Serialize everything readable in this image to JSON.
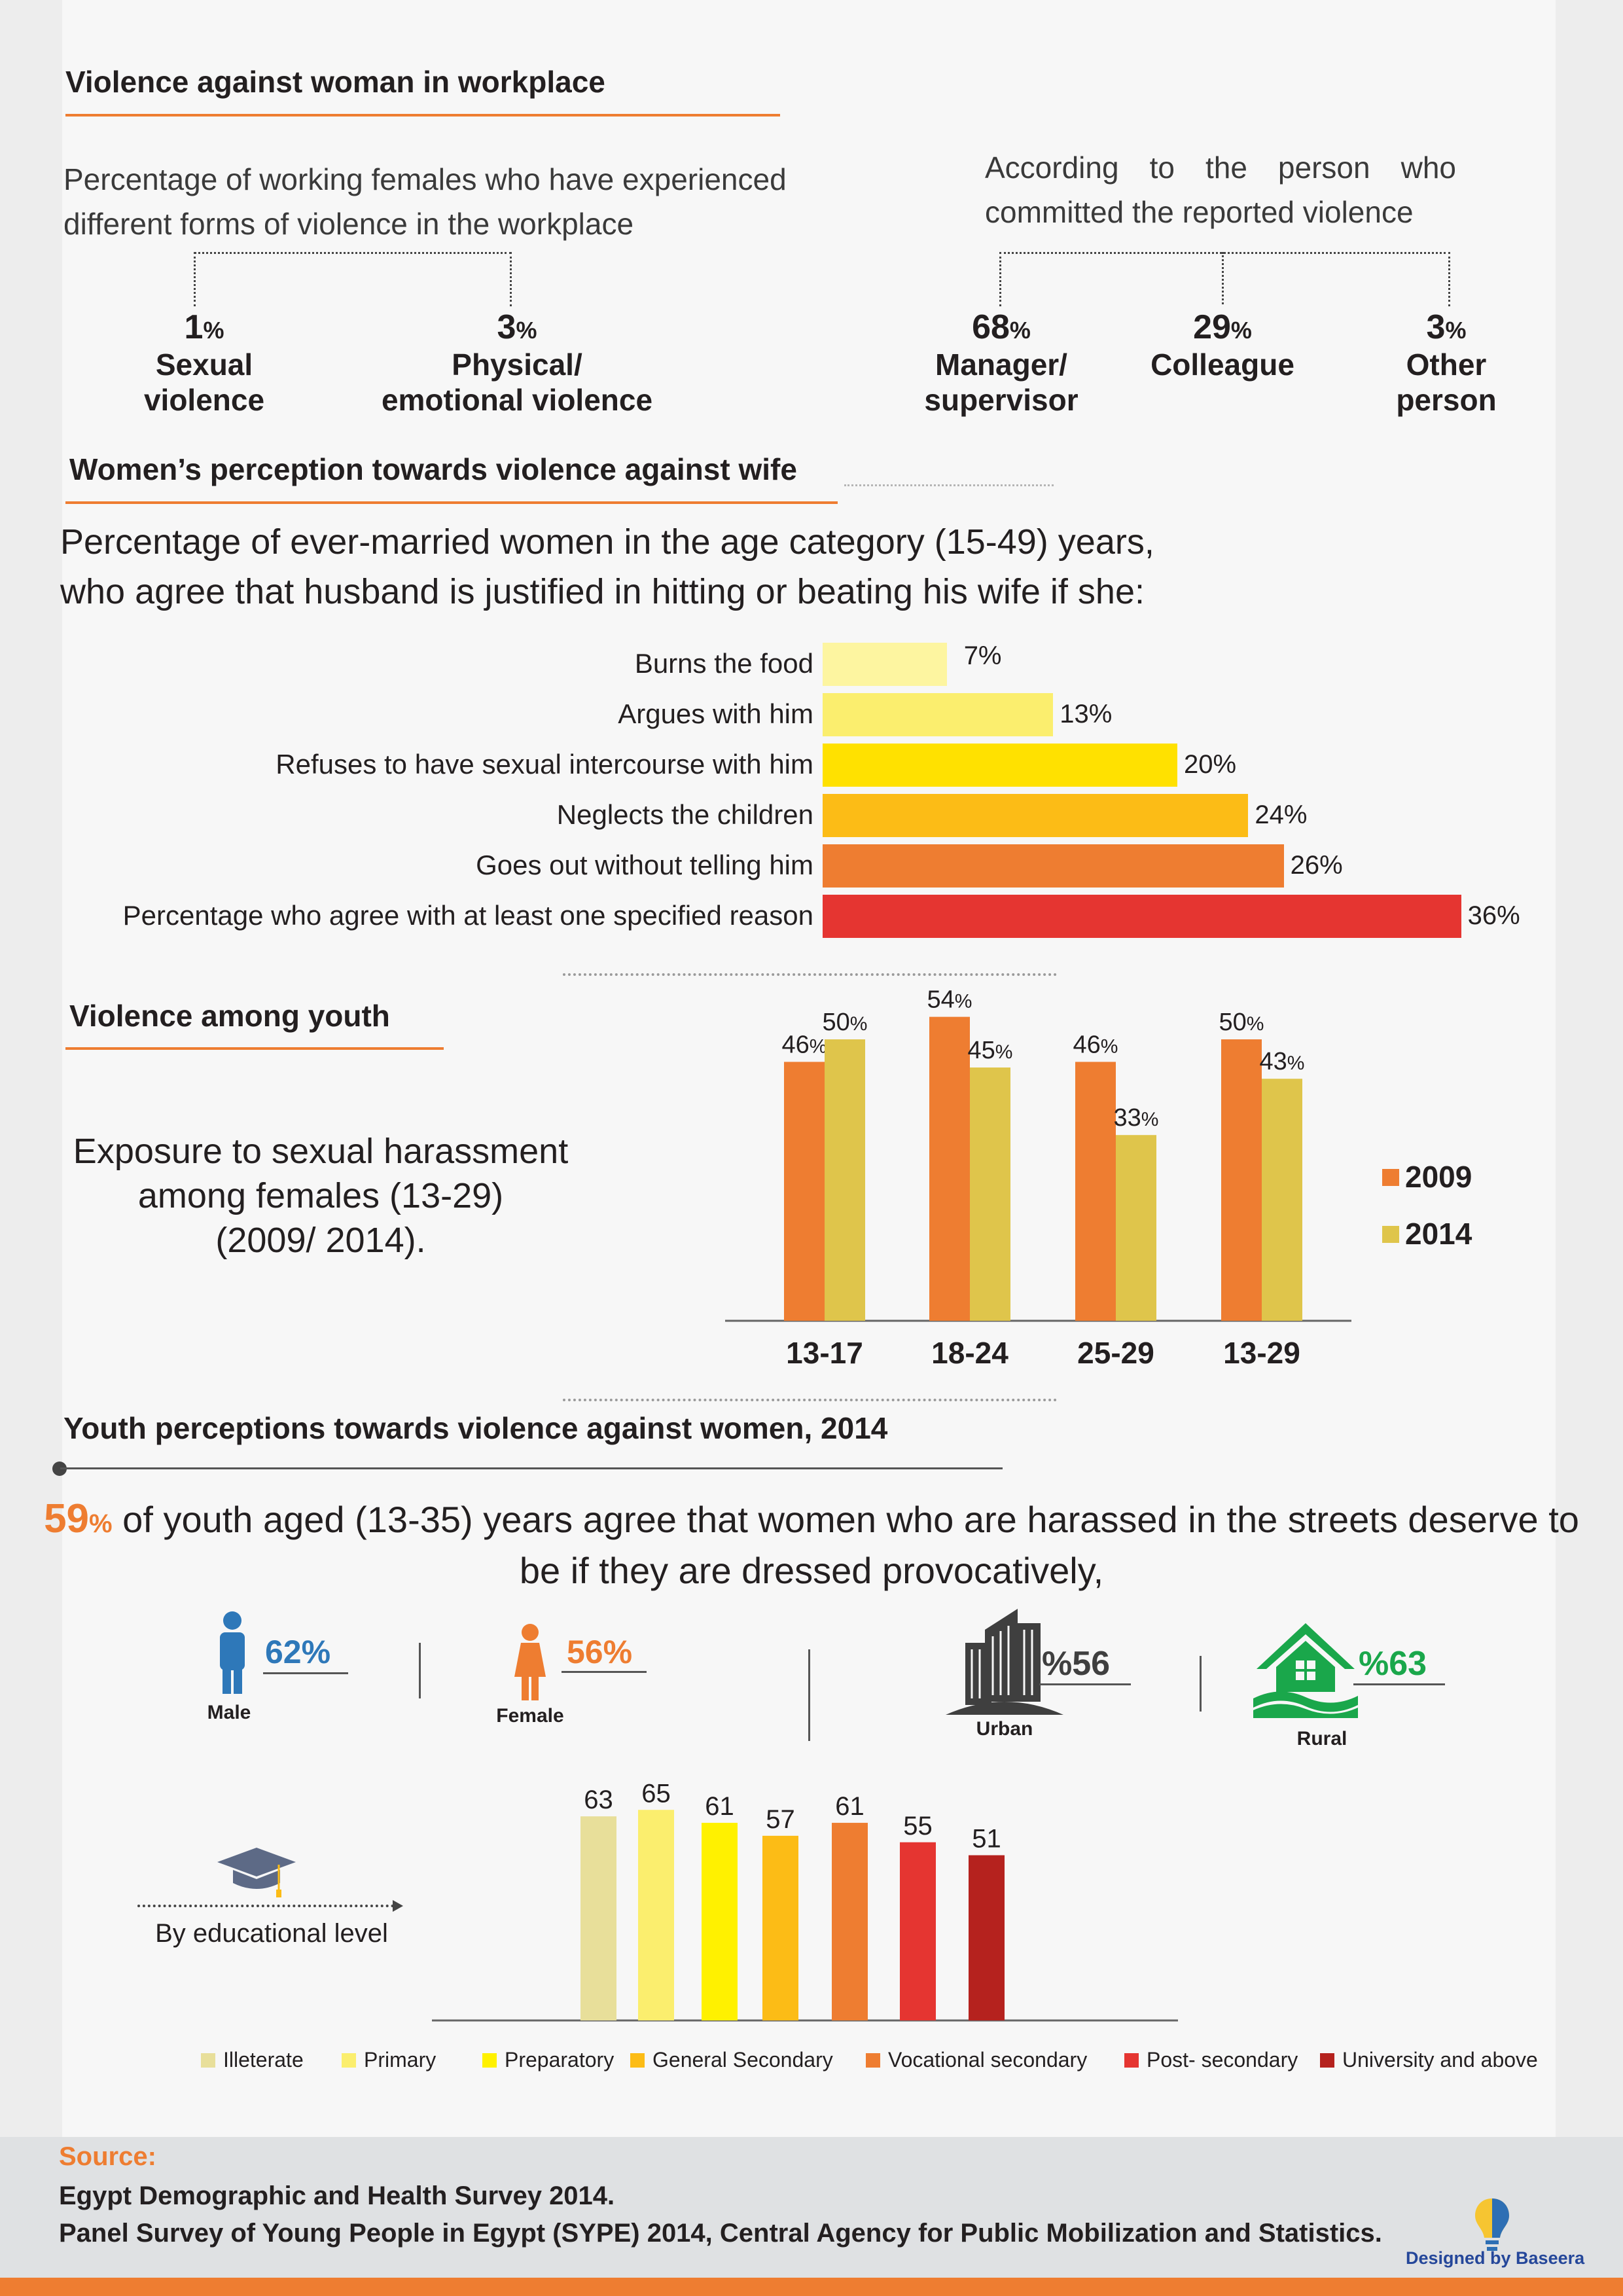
{
  "colors": {
    "orange": "#ee7d31",
    "blue": "#2e78b9",
    "green": "#1aa74b",
    "red": "#e53531"
  },
  "workplace": {
    "title": "Violence against woman in workplace",
    "left_desc": "Percentage of working females who have experienced different forms of violence in the workplace",
    "right_desc": "According to the person who committed the reported violence",
    "forms": [
      {
        "value": "1",
        "unit": "%",
        "label1": "Sexual",
        "label2": "violence"
      },
      {
        "value": "3",
        "unit": "%",
        "label1": "Physical/",
        "label2": "emotional violence"
      }
    ],
    "perpetrators": [
      {
        "value": "68",
        "unit": "%",
        "label1": "Manager/",
        "label2": "supervisor"
      },
      {
        "value": "29",
        "unit": "%",
        "label1": "Colleague",
        "label2": ""
      },
      {
        "value": "3",
        "unit": "%",
        "label1": "Other",
        "label2": "person"
      }
    ]
  },
  "perception": {
    "title": "Women’s perception towards violence against wife",
    "line1": "Percentage of ever-married women in the age category (15-49) years,",
    "line2": "who agree that husband is justified in hitting or beating his wife if she:"
  },
  "youth_violence": {
    "title": "Violence among youth",
    "desc1": "Exposure to sexual harassment",
    "desc2": "among females (13-29)",
    "desc3": "(2009/ 2014)."
  },
  "youth_perception": {
    "title": "Youth perceptions towards violence against women, 2014",
    "headline_pct": "59",
    "headline_unit": "%",
    "headline_rest": " of youth aged (13-35) years  agree that women who are harassed in the streets deserve to",
    "headline_line2": "be if they are dressed provocatively,",
    "male_label": "Male",
    "male_value": "62%",
    "female_label": "Female",
    "female_value": "56%",
    "urban_label": "Urban",
    "urban_value": "%56",
    "rural_label": "Rural",
    "rural_value": "%63",
    "edu_label": "By educational level"
  },
  "source": {
    "heading": "Source:",
    "line1": "Egypt Demographic and Health Survey 2014.",
    "line2": "Panel Survey of Young People in Egypt (SYPE) 2014, Central Agency for Public Mobilization and Statistics.",
    "credit": "Designed by Baseera"
  },
  "chart_data": [
    {
      "type": "bar",
      "orientation": "horizontal",
      "categories": [
        "Burns the food",
        "Argues with him",
        "Refuses to have sexual intercourse with him",
        "Neglects the children",
        "Goes out without telling him",
        "Percentage who agree with at least one specified reason"
      ],
      "values": [
        7,
        13,
        20,
        24,
        26,
        36
      ],
      "value_labels": [
        "7%",
        "13%",
        "20%",
        "24%",
        "26%",
        "36%"
      ],
      "colors": [
        "#fdf5a0",
        "#fbee6e",
        "#ffe100",
        "#fcbc16",
        "#ee7d31",
        "#e53531"
      ]
    },
    {
      "type": "bar",
      "categories": [
        "13-17",
        "18-24",
        "25-29",
        "13-29"
      ],
      "series": [
        {
          "name": "2009",
          "values": [
            46,
            54,
            46,
            50
          ],
          "color": "#ee7d31"
        },
        {
          "name": "2014",
          "values": [
            50,
            45,
            33,
            43
          ],
          "color": "#dfc54b"
        }
      ],
      "legend_position": "right"
    },
    {
      "type": "bar",
      "categories": [
        "Illeterate",
        "Primary",
        "Preparatory",
        "General Secondary",
        "Vocational secondary",
        "Post- secondary",
        "University and above"
      ],
      "values": [
        63,
        65,
        61,
        57,
        61,
        55,
        51
      ],
      "colors": [
        "#e8df9a",
        "#fbee6e",
        "#fff100",
        "#fcbc16",
        "#ee7d31",
        "#e53531",
        "#b5221e"
      ],
      "legend_position": "bottom"
    }
  ]
}
